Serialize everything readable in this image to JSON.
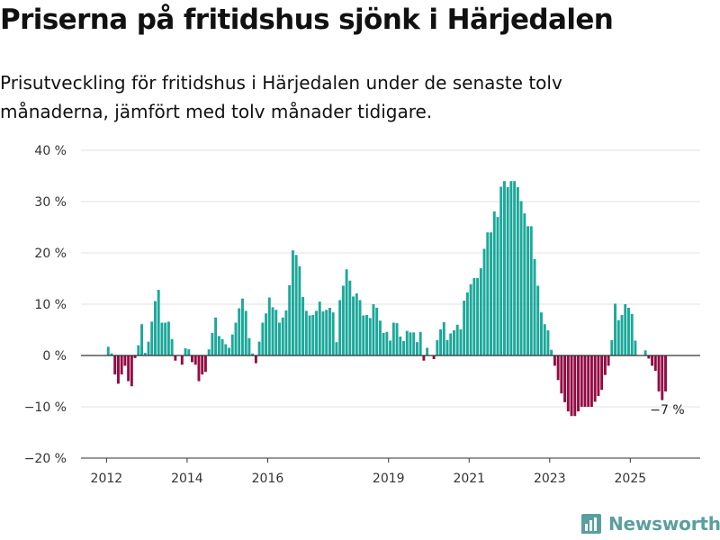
{
  "header": {
    "title": "Priserna på fritidshus sjönk i Härjedalen",
    "subtitle": "Prisutveckling för fritidshus i Härjedalen under de senaste tolv månaderna, jämfört med tolv månader tidigare."
  },
  "brand": {
    "name": "Newsworthy",
    "color": "#5a9f9f"
  },
  "chart_data": {
    "type": "bar",
    "title": "Priserna på fritidshus sjönk i Härjedalen",
    "subtitle": "Prisutveckling för fritidshus i Härjedalen under de senaste tolv månaderna, jämfört med tolv månader tidigare.",
    "xlabel": "",
    "ylabel": "",
    "ylim": [
      -20,
      40
    ],
    "yticks": [
      40,
      30,
      20,
      10,
      0,
      -10,
      -20
    ],
    "ytick_labels": [
      "40 %",
      "30 %",
      "20 %",
      "10 %",
      "0 %",
      "−10 %",
      "−20 %"
    ],
    "xticks": [
      {
        "label": "2012",
        "month": 2012.0
      },
      {
        "label": "2014",
        "month": 2014.0
      },
      {
        "label": "2016",
        "month": 2016.0
      },
      {
        "label": "2019",
        "month": 2019.0
      },
      {
        "label": "2021",
        "month": 2021.0
      },
      {
        "label": "2023",
        "month": 2023.0
      },
      {
        "label": "2025",
        "month": 2025.0
      }
    ],
    "grid": true,
    "colors": {
      "positive": "#1ba89a",
      "negative": "#930b43"
    },
    "start": "2012-01",
    "frequency": "monthly",
    "values": [
      0,
      1.7,
      0.4,
      -3.7,
      -5.5,
      -3.7,
      -2.0,
      -5.0,
      -6.0,
      -0.5,
      2.0,
      6.1,
      0.5,
      2.7,
      6.6,
      10.6,
      12.8,
      6.4,
      6.4,
      6.6,
      3.2,
      -1.0,
      0,
      -1.8,
      1.4,
      1.2,
      -1.3,
      -1.8,
      -5.0,
      -3.7,
      -3.2,
      1.2,
      4.4,
      7.4,
      3.8,
      3.2,
      2.2,
      1.5,
      4.1,
      6.4,
      9.2,
      11.1,
      8.7,
      3.4,
      0.4,
      -1.5,
      2.7,
      6.4,
      8.2,
      11.3,
      9.4,
      8.9,
      6.4,
      7.4,
      8.8,
      13.7,
      20.5,
      19.6,
      17.4,
      11.4,
      8.7,
      7.8,
      7.9,
      8.7,
      10.5,
      8.6,
      8.9,
      9.3,
      8.4,
      2.6,
      10.8,
      13.6,
      16.8,
      14.6,
      11.5,
      12.1,
      10.8,
      7.8,
      7.9,
      7.3,
      10.0,
      9.3,
      6.8,
      4.4,
      4.6,
      2.9,
      6.4,
      6.3,
      3.7,
      2.8,
      4.8,
      4.5,
      4.5,
      2.6,
      4.6,
      -1.0,
      1.5,
      0,
      -0.7,
      3.0,
      5.1,
      6.5,
      3.0,
      4.3,
      4.9,
      6.0,
      5.1,
      10.7,
      12.3,
      13.9,
      15.1,
      15.1,
      17.0,
      20.8,
      24.0,
      24.0,
      28.1,
      27.0,
      32.9,
      34.0,
      32.8,
      34.0,
      34.0,
      32.8,
      30.1,
      27.7,
      25.2,
      25.2,
      18.8,
      13.6,
      8.4,
      6.1,
      4.9,
      1.1,
      -2.0,
      -4.8,
      -7.4,
      -9.1,
      -10.9,
      -11.8,
      -11.8,
      -10.9,
      -10.0,
      -10.0,
      -10.0,
      -10.0,
      -9.0,
      -7.9,
      -6.7,
      -3.8,
      -2.0,
      3.0,
      10.1,
      6.9,
      7.9,
      10.0,
      9.3,
      8.1,
      2.9,
      0,
      0,
      1.0,
      -0.6,
      -2.0,
      -3.0,
      -7.0,
      -8.7,
      -7.0
    ],
    "annotation": {
      "label": "−7 %",
      "value": -7
    }
  }
}
